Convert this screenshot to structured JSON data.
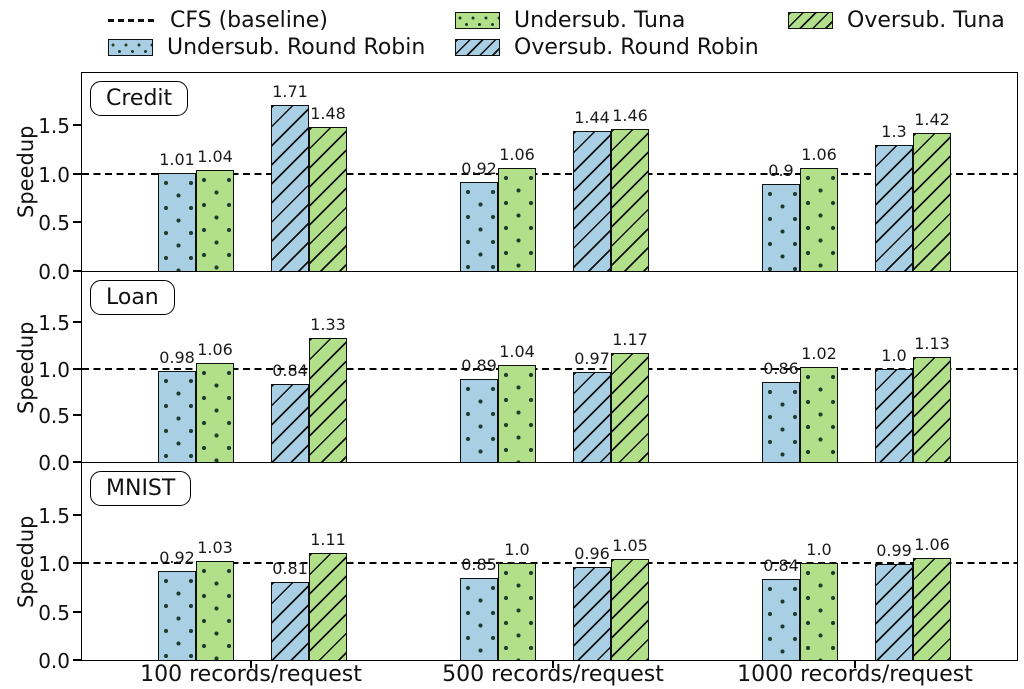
{
  "legend": {
    "items": [
      {
        "label": "CFS (baseline)",
        "swatch": "dashed-line"
      },
      {
        "label": "Undersub. Round Robin",
        "swatch": "blue-dots"
      },
      {
        "label": "Undersub. Tuna",
        "swatch": "green-dots"
      },
      {
        "label": "Oversub. Round Robin",
        "swatch": "blue-diagonal"
      },
      {
        "label": "Oversub. Tuna",
        "swatch": "green-diagonal"
      }
    ]
  },
  "axes": {
    "ylabel": "Speedup",
    "yticks": [
      "0.0",
      "0.5",
      "1.0",
      "1.5"
    ],
    "ylim": [
      0,
      2.04
    ],
    "categories": [
      "100 records/request",
      "500 records/request",
      "1000 records/request"
    ],
    "baseline_value": 1.0,
    "baseline_name": "CFS (baseline)"
  },
  "colors": {
    "bar_blue": "#a8cfe3",
    "bar_green": "#b2df8a",
    "edge": "#101010",
    "baseline": "#000000"
  },
  "chart_data": [
    {
      "type": "bar",
      "panel_label": "Credit",
      "categories": [
        "100 records/request",
        "500 records/request",
        "1000 records/request"
      ],
      "baseline": {
        "name": "CFS (baseline)",
        "value": 1.0
      },
      "ylim": [
        0,
        2.04
      ],
      "series": [
        {
          "name": "Undersub. Round Robin",
          "color": "blue",
          "hatch": "dots",
          "values": [
            1.01,
            0.92,
            0.9
          ],
          "labels": [
            "1.01",
            "0.92",
            "0.9"
          ]
        },
        {
          "name": "Undersub. Tuna",
          "color": "green",
          "hatch": "dots",
          "values": [
            1.04,
            1.06,
            1.06
          ],
          "labels": [
            "1.04",
            "1.06",
            "1.06"
          ]
        },
        {
          "name": "Oversub. Round Robin",
          "color": "blue",
          "hatch": "diagonal",
          "values": [
            1.71,
            1.44,
            1.3
          ],
          "labels": [
            "1.71",
            "1.44",
            "1.3"
          ]
        },
        {
          "name": "Oversub. Tuna",
          "color": "green",
          "hatch": "diagonal",
          "values": [
            1.48,
            1.46,
            1.42
          ],
          "labels": [
            "1.48",
            "1.46",
            "1.42"
          ]
        }
      ]
    },
    {
      "type": "bar",
      "panel_label": "Loan",
      "categories": [
        "100 records/request",
        "500 records/request",
        "1000 records/request"
      ],
      "baseline": {
        "name": "CFS (baseline)",
        "value": 1.0
      },
      "ylim": [
        0,
        2.04
      ],
      "series": [
        {
          "name": "Undersub. Round Robin",
          "color": "blue",
          "hatch": "dots",
          "values": [
            0.98,
            0.89,
            0.86
          ],
          "labels": [
            "0.98",
            "0.89",
            "0.86"
          ]
        },
        {
          "name": "Undersub. Tuna",
          "color": "green",
          "hatch": "dots",
          "values": [
            1.06,
            1.04,
            1.02
          ],
          "labels": [
            "1.06",
            "1.04",
            "1.02"
          ]
        },
        {
          "name": "Oversub. Round Robin",
          "color": "blue",
          "hatch": "diagonal",
          "values": [
            0.84,
            0.97,
            1.0
          ],
          "labels": [
            "0.84",
            "0.97",
            "1.0"
          ]
        },
        {
          "name": "Oversub. Tuna",
          "color": "green",
          "hatch": "diagonal",
          "values": [
            1.33,
            1.17,
            1.13
          ],
          "labels": [
            "1.33",
            "1.17",
            "1.13"
          ]
        }
      ]
    },
    {
      "type": "bar",
      "panel_label": "MNIST",
      "categories": [
        "100 records/request",
        "500 records/request",
        "1000 records/request"
      ],
      "baseline": {
        "name": "CFS (baseline)",
        "value": 1.0
      },
      "ylim": [
        0,
        2.04
      ],
      "series": [
        {
          "name": "Undersub. Round Robin",
          "color": "blue",
          "hatch": "dots",
          "values": [
            0.92,
            0.85,
            0.84
          ],
          "labels": [
            "0.92",
            "0.85",
            "0.84"
          ]
        },
        {
          "name": "Undersub. Tuna",
          "color": "green",
          "hatch": "dots",
          "values": [
            1.03,
            1.0,
            1.0
          ],
          "labels": [
            "1.03",
            "1.0",
            "1.0"
          ]
        },
        {
          "name": "Oversub. Round Robin",
          "color": "blue",
          "hatch": "diagonal",
          "values": [
            0.81,
            0.96,
            0.99
          ],
          "labels": [
            "0.81",
            "0.96",
            "0.99"
          ]
        },
        {
          "name": "Oversub. Tuna",
          "color": "green",
          "hatch": "diagonal",
          "values": [
            1.11,
            1.05,
            1.06
          ],
          "labels": [
            "1.11",
            "1.05",
            "1.06"
          ]
        }
      ]
    }
  ]
}
